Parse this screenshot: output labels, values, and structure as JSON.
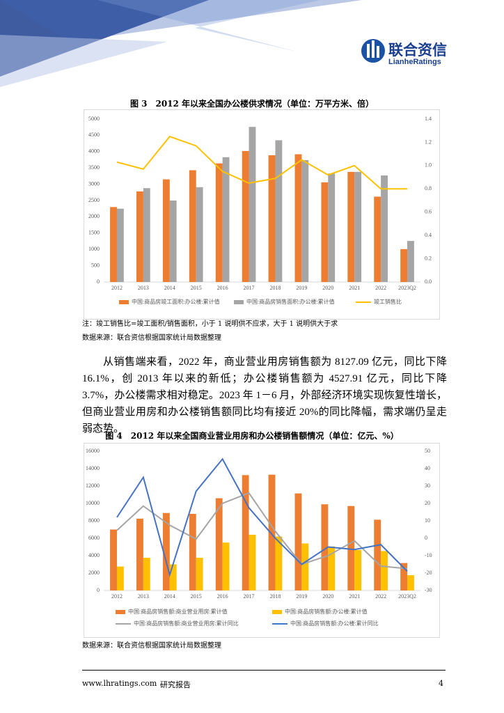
{
  "header": {
    "brand": "联合资信",
    "brand_en": "LianheRatings"
  },
  "chart_data": [
    {
      "type": "combo",
      "title": "图 3　2012 年以来全国办公楼供求情况（单位：万平方米、倍）",
      "categories": [
        "2012",
        "2013",
        "2014",
        "2015",
        "2016",
        "2017",
        "2018",
        "2019",
        "2020",
        "2021",
        "2022",
        "2023Q2"
      ],
      "series": [
        {
          "name": "中国:商品房竣工面积:办公楼:累计值",
          "color": "#ED7D31",
          "kind": "bar",
          "values": [
            2300,
            2780,
            3150,
            3430,
            3640,
            4020,
            3890,
            3920,
            3060,
            3380,
            2620,
            1010
          ]
        },
        {
          "name": "中国:商品房销售面积:办公楼:累计值",
          "color": "#A5A5A5",
          "kind": "bar",
          "values": [
            2250,
            2880,
            2500,
            2910,
            3830,
            4760,
            4350,
            3740,
            3330,
            3380,
            3270,
            1260
          ]
        },
        {
          "name": "竣工销售比",
          "color": "#FFC000",
          "kind": "line",
          "axis": "y2",
          "values": [
            1.03,
            0.97,
            1.25,
            1.17,
            0.95,
            0.85,
            0.89,
            1.05,
            0.92,
            1.0,
            0.8,
            0.8
          ]
        }
      ],
      "ylim": [
        0,
        5000
      ],
      "yticks": [
        0,
        500,
        1000,
        1500,
        2000,
        2500,
        3000,
        3500,
        4000,
        4500,
        5000
      ],
      "y2lim": [
        0,
        1.4
      ],
      "y2ticks": [
        {
          "value": 0,
          "label": "0.0"
        },
        0.2,
        0.4,
        0.6,
        0.8,
        {
          "value": 1,
          "label": "1.0"
        },
        1.2,
        1.4
      ],
      "grid": false,
      "legend": "bottom"
    },
    {
      "type": "combo",
      "title": "图 4　2012 年以来全国商业营业用房和办公楼销售额情况（单位：亿元、%）",
      "categories": [
        "2012",
        "2013",
        "2014",
        "2015",
        "2016",
        "2017",
        "2018",
        "2019",
        "2020",
        "2021",
        "2022",
        "2023Q2"
      ],
      "series": [
        {
          "name": "中国:商品房销售额:商业营业用房:累计值",
          "color": "#ED7D31",
          "kind": "bar",
          "values": [
            7000,
            8250,
            8900,
            8800,
            10600,
            13250,
            13300,
            11150,
            9900,
            9700,
            8130,
            3150
          ]
        },
        {
          "name": "中国:商品房销售额:办公楼:累计值",
          "color": "#FFC000",
          "kind": "bar",
          "values": [
            2750,
            3750,
            3000,
            3750,
            5500,
            6400,
            6200,
            5400,
            5050,
            4650,
            4530,
            1750
          ]
        },
        {
          "name": "中国:商品房销售额:商业营业用房:累计同比",
          "color": "#A5A5A5",
          "kind": "line",
          "axis": "y2",
          "values": [
            4.5,
            18.5,
            7.5,
            -0.5,
            20,
            26,
            4,
            -15,
            -10,
            -1.5,
            -16,
            -17.5
          ]
        },
        {
          "name": "中国:商品房销售额:办公楼:累计同比",
          "color": "#4472C4",
          "kind": "line",
          "axis": "y2",
          "values": [
            12,
            35,
            -21,
            27,
            45.5,
            17.5,
            0,
            -15,
            -5,
            -6.5,
            -3.7,
            -19
          ]
        }
      ],
      "ylim": [
        0,
        16000
      ],
      "yticks": [
        0,
        2000,
        4000,
        6000,
        8000,
        10000,
        12000,
        14000,
        16000
      ],
      "y2lim": [
        -30,
        50
      ],
      "y2ticks": [
        -30,
        -20,
        -10,
        0,
        10,
        20,
        30,
        40,
        50
      ],
      "grid": false,
      "legend": "bottom"
    }
  ],
  "notes": {
    "fig3_note": "注：竣工销售比=竣工面积/销售面积，小于 1 说明供不应求，大于 1 说明供大于求",
    "fig3_source": "数据来源：联合资信根据国家统计局数据整理",
    "fig4_source": "数据来源：联合资信根据国家统计局数据整理"
  },
  "body": {
    "paragraph": "从销售端来看，2022 年，商业营业用房销售额为 8127.09 亿元，同比下降 16.1%，创 2013 年以来的新低；办公楼销售额为 4527.91 亿元，同比下降 3.7%，办公楼需求相对稳定。2023 年 1－6 月，外部经济环境实现恢复性增长，但商业营业用房和办公楼销售额同比均有接近 20%的同比降幅，需求端仍呈走弱态势。"
  },
  "footer": {
    "url": "www.lhratings.com",
    "label": "研究报告",
    "page": "4"
  }
}
